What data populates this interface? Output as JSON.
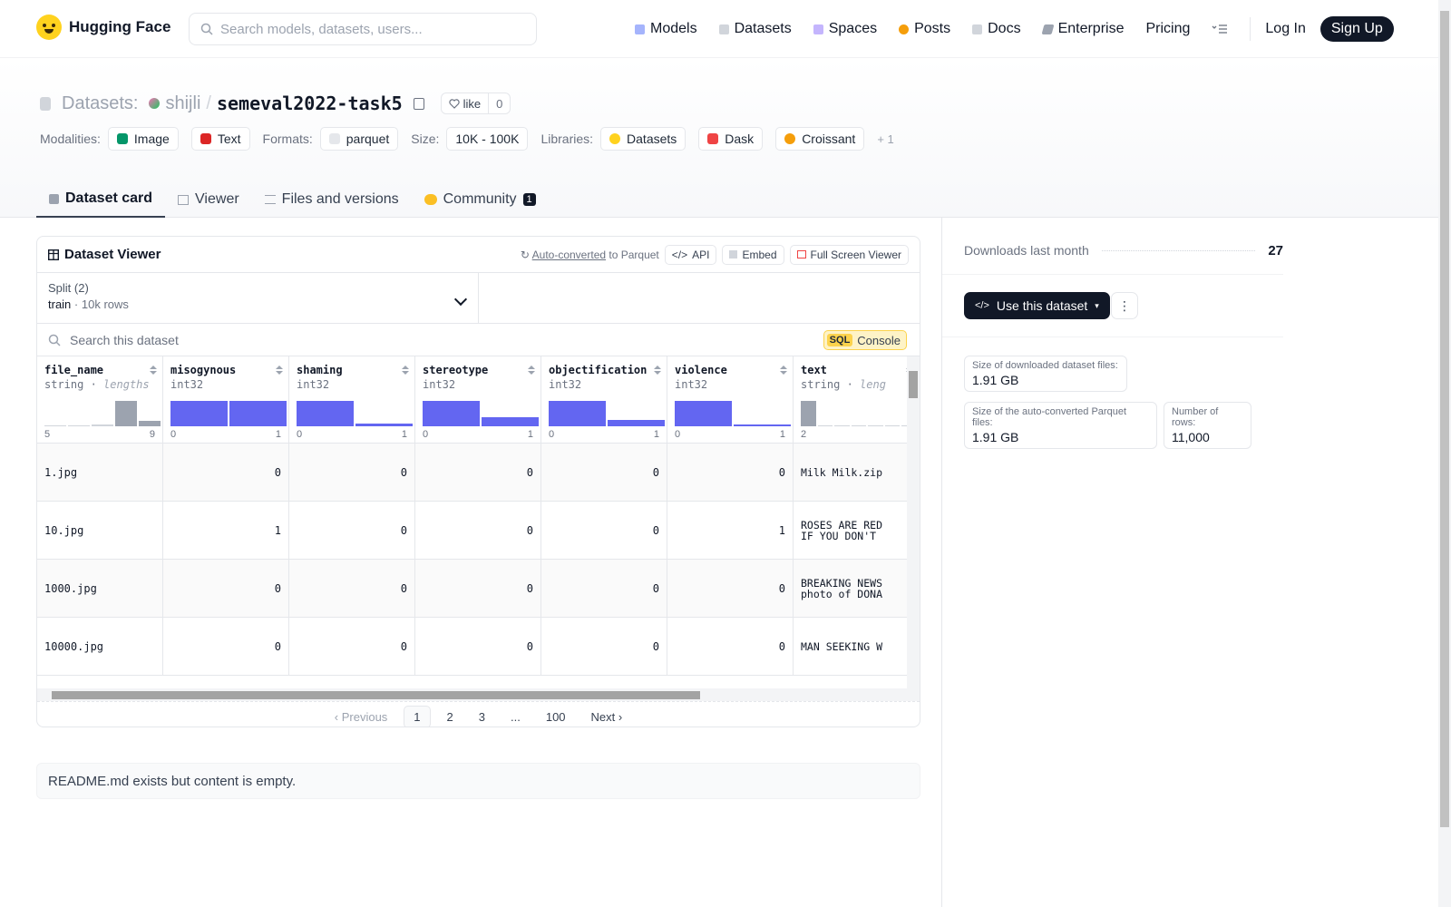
{
  "nav": {
    "brand": "Hugging Face",
    "search_placeholder": "Search models, datasets, users...",
    "links": [
      {
        "label": "Models",
        "icon": "cube-icon",
        "color": "#a5b4fc"
      },
      {
        "label": "Datasets",
        "icon": "database-icon",
        "color": "#d1d5db"
      },
      {
        "label": "Spaces",
        "icon": "grid-icon",
        "color": "#c4b5fd"
      },
      {
        "label": "Posts",
        "icon": "chat-icon",
        "color": "#f59e0b"
      },
      {
        "label": "Docs",
        "icon": "doc-icon",
        "color": "#9ca3af"
      },
      {
        "label": "Enterprise",
        "icon": "enterprise-icon",
        "color": "#6b7280"
      },
      {
        "label": "Pricing",
        "icon": "",
        "color": ""
      }
    ],
    "login": "Log In",
    "signup": "Sign Up"
  },
  "header": {
    "kind": "Datasets:",
    "user": "shijli",
    "slash": "/",
    "repo": "semeval2022-task5",
    "like_label": "like",
    "like_count": "0",
    "tags": {
      "modalities_label": "Modalities:",
      "modalities": [
        "Image",
        "Text"
      ],
      "formats_label": "Formats:",
      "formats": [
        "parquet"
      ],
      "size_label": "Size:",
      "size": "10K - 100K",
      "libraries_label": "Libraries:",
      "libraries": [
        "Datasets",
        "Dask",
        "Croissant"
      ],
      "more": "+ 1"
    },
    "tabs": [
      {
        "label": "Dataset card",
        "active": true
      },
      {
        "label": "Viewer",
        "active": false
      },
      {
        "label": "Files and versions",
        "active": false
      },
      {
        "label": "Community",
        "active": false,
        "badge": "1"
      }
    ]
  },
  "viewer": {
    "title": "Dataset Viewer",
    "auto_converted": "Auto-converted",
    "to_parquet": "to Parquet",
    "api": "API",
    "embed": "Embed",
    "fullscreen": "Full Screen Viewer",
    "split_label": "Split (2)",
    "split_value": "train",
    "split_rows": "10k rows",
    "search_placeholder": "Search this dataset",
    "sql": "SQL",
    "console": "Console",
    "columns": [
      {
        "name": "file_name",
        "type": "string",
        "sub": "lengths",
        "min": "5",
        "max": "9",
        "hist": [
          0.05,
          0.05,
          0.08,
          1.0,
          0.2
        ],
        "style": "gray"
      },
      {
        "name": "misogynous",
        "type": "int32",
        "sub": "",
        "min": "0",
        "max": "1",
        "hist": [
          1.0,
          1.0
        ],
        "style": "blue"
      },
      {
        "name": "shaming",
        "type": "int32",
        "sub": "",
        "min": "0",
        "max": "1",
        "hist": [
          1.0,
          0.12
        ],
        "style": "blue"
      },
      {
        "name": "stereotype",
        "type": "int32",
        "sub": "",
        "min": "0",
        "max": "1",
        "hist": [
          1.0,
          0.35
        ],
        "style": "blue"
      },
      {
        "name": "objectification",
        "type": "int32",
        "sub": "",
        "min": "0",
        "max": "1",
        "hist": [
          1.0,
          0.25
        ],
        "style": "blue"
      },
      {
        "name": "violence",
        "type": "int32",
        "sub": "",
        "min": "0",
        "max": "1",
        "hist": [
          1.0,
          0.08
        ],
        "style": "blue"
      },
      {
        "name": "text",
        "type": "string",
        "sub": "leng",
        "min": "2",
        "max": "",
        "hist": [
          1.0,
          0.05,
          0.05,
          0.05,
          0.05,
          0.05,
          0.05
        ],
        "style": "gray"
      }
    ],
    "rows": [
      [
        "1.jpg",
        "0",
        "0",
        "0",
        "0",
        "0",
        "Milk Milk.zip"
      ],
      [
        "10.jpg",
        "1",
        "0",
        "0",
        "0",
        "1",
        "ROSES ARE RED\nIF YOU DON'T"
      ],
      [
        "1000.jpg",
        "0",
        "0",
        "0",
        "0",
        "0",
        "BREAKING NEWS\nphoto of DONA"
      ],
      [
        "10000.jpg",
        "0",
        "0",
        "0",
        "0",
        "0",
        "MAN SEEKING W"
      ]
    ],
    "pager": {
      "prev": "Previous",
      "pages": [
        "1",
        "2",
        "3",
        "...",
        "100"
      ],
      "next": "Next"
    }
  },
  "readme": "README.md exists but content is empty.",
  "sidebar": {
    "downloads_label": "Downloads last month",
    "downloads": "27",
    "use_dataset": "Use this dataset",
    "more": "⋮",
    "stats": [
      {
        "label": "Size of downloaded dataset files:",
        "value": "1.91 GB"
      },
      {
        "label": "Size of the auto-converted Parquet files:",
        "value": "1.91 GB"
      },
      {
        "label": "Number of rows:",
        "value": "11,000"
      }
    ]
  }
}
